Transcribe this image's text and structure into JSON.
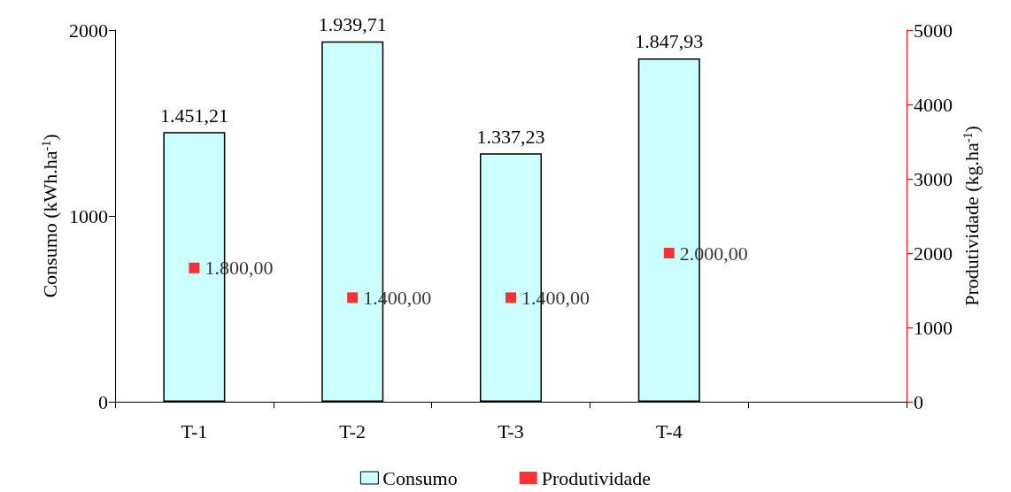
{
  "chart_data": {
    "type": "bar",
    "categories": [
      "T-1",
      "T-2",
      "T-3",
      "T-4",
      null
    ],
    "ylabel": "Consumo (kWh.ha$^{-1}$)",
    "y2label": "Produtividade (kg.ha$^{-1}$)",
    "series": [
      {
        "name": "Consumo",
        "type": "bar",
        "color": "#ccffff",
        "values": [
          1451.21,
          1939.71,
          1337.23,
          1847.93,
          null
        ],
        "value_labels": [
          "1.451,21",
          "1.939,71",
          "1.337,23",
          "1.847,93",
          null
        ]
      },
      {
        "name": "Produtividade",
        "type": "scatter",
        "axis": "y2",
        "color": "#ff0000",
        "marker": "square",
        "values": [
          1800,
          1400,
          1400,
          2000,
          null
        ],
        "value_labels": [
          "1.800,00",
          "1.400,00",
          "1.400,00",
          "2.000,00",
          null
        ]
      }
    ],
    "ylim": [
      0,
      2000
    ],
    "yticks": [
      0,
      1000,
      2000
    ],
    "y2lim": [
      0,
      5000
    ],
    "y2ticks": [
      0,
      1000,
      2000,
      3000,
      4000,
      5000
    ],
    "grid": false,
    "legend": "bottom"
  }
}
